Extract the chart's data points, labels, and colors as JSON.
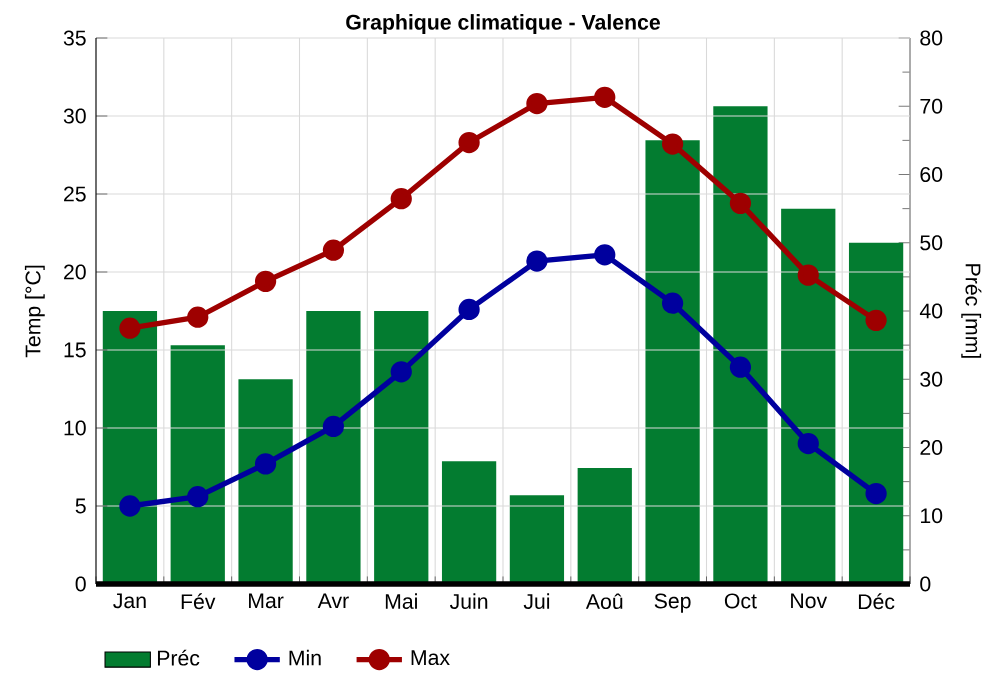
{
  "chart_data": {
    "type": "line",
    "title": "Graphique climatique - Valence",
    "ylabel": "Temp [°C]",
    "y2label": "Préc [mm]",
    "categories": [
      "Jan",
      "Fév",
      "Mar",
      "Avr",
      "Mai",
      "Juin",
      "Jui",
      "Aoû",
      "Sep",
      "Oct",
      "Nov",
      "Déc"
    ],
    "series": [
      {
        "name": "Préc",
        "type": "bar",
        "axis": "y2",
        "color": "#037c30",
        "values": [
          40,
          35,
          30,
          40,
          40,
          18,
          13,
          17,
          65,
          70,
          55,
          50
        ]
      },
      {
        "name": "Min",
        "color": "#00009e",
        "values": [
          5.0,
          5.6,
          7.7,
          10.1,
          13.6,
          17.6,
          20.7,
          21.1,
          18.0,
          13.9,
          9.0,
          5.8
        ]
      },
      {
        "name": "Max",
        "color": "#9e0000",
        "values": [
          16.4,
          17.1,
          19.4,
          21.4,
          24.7,
          28.3,
          30.8,
          31.2,
          28.2,
          24.4,
          19.8,
          16.9
        ]
      }
    ],
    "ylim": [
      0,
      35
    ],
    "yticks": [
      0,
      5,
      10,
      15,
      20,
      25,
      30,
      35
    ],
    "y2lim": [
      0,
      80
    ],
    "y2ticks": [
      0,
      10,
      20,
      30,
      40,
      50,
      60,
      70,
      80
    ],
    "grid": true,
    "legend": "bottom",
    "marker": "circle",
    "line_style": "solid"
  }
}
